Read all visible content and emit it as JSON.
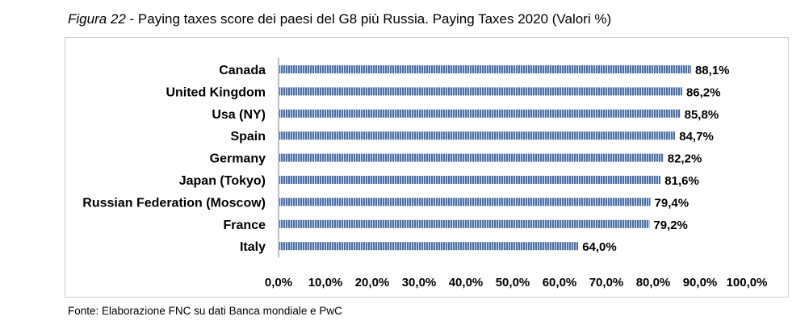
{
  "caption": {
    "figure": "Figura 22",
    "text": " - Paying taxes score dei paesi del G8 più Russia. Paying Taxes 2020 (Valori %)"
  },
  "source": "Fonte: Elaborazione FNC su dati Banca mondiale e PwC",
  "colors": {
    "bar": "#4a6fa5",
    "bar_stripe": "#ffffff",
    "axis": "#bfbfbf"
  },
  "chart_data": {
    "type": "bar",
    "orientation": "horizontal",
    "categories": [
      "Canada",
      "United Kingdom",
      "Usa (NY)",
      "Spain",
      "Germany",
      "Japan (Tokyo)",
      "Russian Federation (Moscow)",
      "France",
      "Italy"
    ],
    "values": [
      88.1,
      86.2,
      85.8,
      84.7,
      82.2,
      81.6,
      79.4,
      79.2,
      64.0
    ],
    "data_labels": [
      "88,1%",
      "86,2%",
      "85,8%",
      "84,7%",
      "82,2%",
      "81,6%",
      "79,4%",
      "79,2%",
      "64,0%"
    ],
    "xlim": [
      0,
      100
    ],
    "x_ticks": [
      0,
      10,
      20,
      30,
      40,
      50,
      60,
      70,
      80,
      90,
      100
    ],
    "x_tick_labels": [
      "0,0%",
      "10,0%",
      "20,0%",
      "30,0%",
      "40,0%",
      "50,0%",
      "60,0%",
      "70,0%",
      "80,0%",
      "90,0%",
      "100,0%"
    ],
    "grid": false,
    "legend": false
  }
}
